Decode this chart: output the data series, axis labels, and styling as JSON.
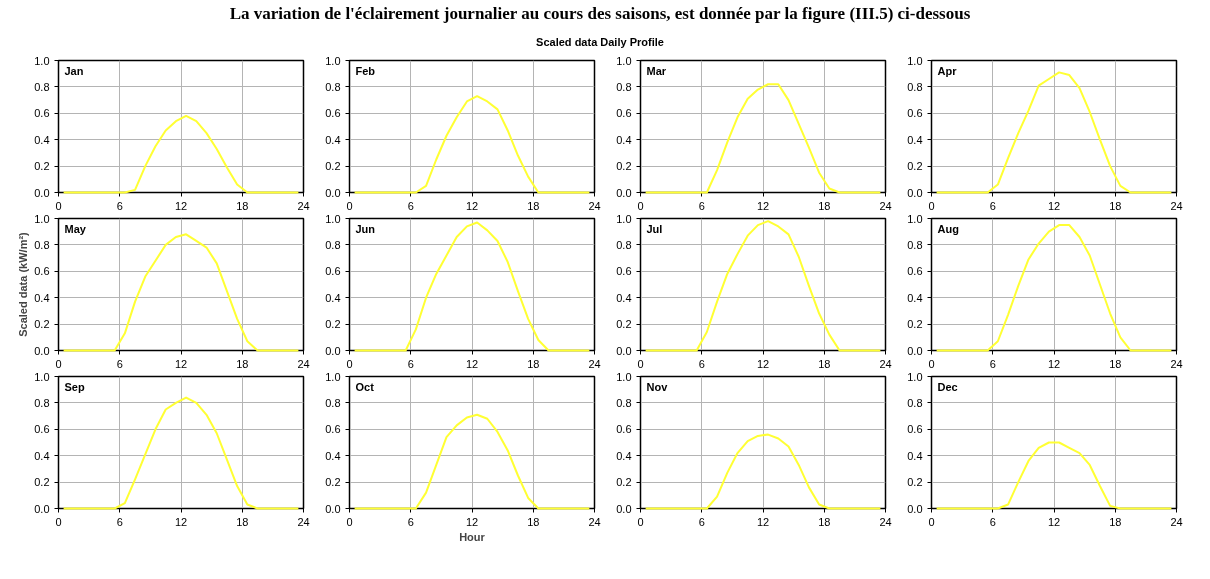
{
  "chart_data": [
    {
      "type": "line",
      "title": "Jan",
      "annotations": [
        "La variation de l'éclairement journalier au cours des saisons, est donnée par la figure (III.5) ci-dessous",
        "Scaled data Daily Profile"
      ],
      "x": [
        0.5,
        1.5,
        2.5,
        3.5,
        4.5,
        5.5,
        6.5,
        7.5,
        8.5,
        9.5,
        10.5,
        11.5,
        12.5,
        13.5,
        14.5,
        15.5,
        16.5,
        17.5,
        18.5,
        19.5,
        20.5,
        21.5,
        22.5,
        23.5
      ],
      "values": [
        0,
        0,
        0,
        0,
        0,
        0,
        0,
        0.02,
        0.2,
        0.35,
        0.47,
        0.54,
        0.58,
        0.54,
        0.45,
        0.33,
        0.19,
        0.06,
        0,
        0,
        0,
        0,
        0,
        0
      ],
      "color": "#ffff33",
      "xlim": [
        0,
        24
      ],
      "ylim": [
        0,
        1
      ],
      "xticks": [
        0,
        6,
        12,
        18,
        24
      ],
      "yticks": [
        {
          "value": 0,
          "label": "0.0"
        },
        {
          "value": 0.2,
          "label": "0.2"
        },
        {
          "value": 0.4,
          "label": "0.4"
        },
        {
          "value": 0.6,
          "label": "0.6"
        },
        {
          "value": 0.8,
          "label": "0.8"
        },
        {
          "value": 1,
          "label": "1.0"
        }
      ],
      "grid": true
    },
    {
      "type": "line",
      "title": "Feb",
      "x": [
        0.5,
        1.5,
        2.5,
        3.5,
        4.5,
        5.5,
        6.5,
        7.5,
        8.5,
        9.5,
        10.5,
        11.5,
        12.5,
        13.5,
        14.5,
        15.5,
        16.5,
        17.5,
        18.5,
        19.5,
        20.5,
        21.5,
        22.5,
        23.5
      ],
      "values": [
        0,
        0,
        0,
        0,
        0,
        0,
        0,
        0.05,
        0.25,
        0.43,
        0.57,
        0.69,
        0.73,
        0.69,
        0.63,
        0.47,
        0.28,
        0.12,
        0,
        0,
        0,
        0,
        0,
        0
      ],
      "color": "#ffff33",
      "xlim": [
        0,
        24
      ],
      "ylim": [
        0,
        1
      ],
      "xticks": [
        0,
        6,
        12,
        18,
        24
      ],
      "yticks": [
        {
          "value": 0,
          "label": "0.0"
        },
        {
          "value": 0.2,
          "label": "0.2"
        },
        {
          "value": 0.4,
          "label": "0.4"
        },
        {
          "value": 0.6,
          "label": "0.6"
        },
        {
          "value": 0.8,
          "label": "0.8"
        },
        {
          "value": 1,
          "label": "1.0"
        }
      ],
      "grid": true
    },
    {
      "type": "line",
      "title": "Mar",
      "x": [
        0.5,
        1.5,
        2.5,
        3.5,
        4.5,
        5.5,
        6.5,
        7.5,
        8.5,
        9.5,
        10.5,
        11.5,
        12.5,
        13.5,
        14.5,
        15.5,
        16.5,
        17.5,
        18.5,
        19.5,
        20.5,
        21.5,
        22.5,
        23.5
      ],
      "values": [
        0,
        0,
        0,
        0,
        0,
        0,
        0,
        0.17,
        0.38,
        0.57,
        0.71,
        0.78,
        0.82,
        0.82,
        0.7,
        0.52,
        0.34,
        0.15,
        0.03,
        0,
        0,
        0,
        0,
        0
      ],
      "color": "#ffff33",
      "xlim": [
        0,
        24
      ],
      "ylim": [
        0,
        1
      ],
      "xticks": [
        0,
        6,
        12,
        18,
        24
      ],
      "yticks": [
        {
          "value": 0,
          "label": "0.0"
        },
        {
          "value": 0.2,
          "label": "0.2"
        },
        {
          "value": 0.4,
          "label": "0.4"
        },
        {
          "value": 0.6,
          "label": "0.6"
        },
        {
          "value": 0.8,
          "label": "0.8"
        },
        {
          "value": 1,
          "label": "1.0"
        }
      ],
      "grid": true
    },
    {
      "type": "line",
      "title": "Apr",
      "x": [
        0.5,
        1.5,
        2.5,
        3.5,
        4.5,
        5.5,
        6.5,
        7.5,
        8.5,
        9.5,
        10.5,
        11.5,
        12.5,
        13.5,
        14.5,
        15.5,
        16.5,
        17.5,
        18.5,
        19.5,
        20.5,
        21.5,
        22.5,
        23.5
      ],
      "values": [
        0,
        0,
        0,
        0,
        0,
        0,
        0.06,
        0.26,
        0.45,
        0.62,
        0.81,
        0.86,
        0.91,
        0.89,
        0.79,
        0.61,
        0.4,
        0.2,
        0.05,
        0,
        0,
        0,
        0,
        0
      ],
      "color": "#ffff33",
      "xlim": [
        0,
        24
      ],
      "ylim": [
        0,
        1
      ],
      "xticks": [
        0,
        6,
        12,
        18,
        24
      ],
      "yticks": [
        {
          "value": 0,
          "label": "0.0"
        },
        {
          "value": 0.2,
          "label": "0.2"
        },
        {
          "value": 0.4,
          "label": "0.4"
        },
        {
          "value": 0.6,
          "label": "0.6"
        },
        {
          "value": 0.8,
          "label": "0.8"
        },
        {
          "value": 1,
          "label": "1.0"
        }
      ],
      "grid": true
    },
    {
      "type": "line",
      "title": "May",
      "ylabel": "Scaled data (kW/m²)",
      "x": [
        0.5,
        1.5,
        2.5,
        3.5,
        4.5,
        5.5,
        6.5,
        7.5,
        8.5,
        9.5,
        10.5,
        11.5,
        12.5,
        13.5,
        14.5,
        15.5,
        16.5,
        17.5,
        18.5,
        19.5,
        20.5,
        21.5,
        22.5,
        23.5
      ],
      "values": [
        0,
        0,
        0,
        0,
        0,
        0,
        0.13,
        0.37,
        0.56,
        0.68,
        0.8,
        0.86,
        0.88,
        0.83,
        0.78,
        0.66,
        0.45,
        0.24,
        0.07,
        0,
        0,
        0,
        0,
        0
      ],
      "color": "#ffff33",
      "xlim": [
        0,
        24
      ],
      "ylim": [
        0,
        1
      ],
      "xticks": [
        0,
        6,
        12,
        18,
        24
      ],
      "yticks": [
        {
          "value": 0,
          "label": "0.0"
        },
        {
          "value": 0.2,
          "label": "0.2"
        },
        {
          "value": 0.4,
          "label": "0.4"
        },
        {
          "value": 0.6,
          "label": "0.6"
        },
        {
          "value": 0.8,
          "label": "0.8"
        },
        {
          "value": 1,
          "label": "1.0"
        }
      ],
      "grid": true
    },
    {
      "type": "line",
      "title": "Jun",
      "x": [
        0.5,
        1.5,
        2.5,
        3.5,
        4.5,
        5.5,
        6.5,
        7.5,
        8.5,
        9.5,
        10.5,
        11.5,
        12.5,
        13.5,
        14.5,
        15.5,
        16.5,
        17.5,
        18.5,
        19.5,
        20.5,
        21.5,
        22.5,
        23.5
      ],
      "values": [
        0,
        0,
        0,
        0,
        0,
        0,
        0.16,
        0.4,
        0.58,
        0.72,
        0.86,
        0.94,
        0.97,
        0.91,
        0.83,
        0.67,
        0.45,
        0.24,
        0.08,
        0,
        0,
        0,
        0,
        0
      ],
      "color": "#ffff33",
      "xlim": [
        0,
        24
      ],
      "ylim": [
        0,
        1
      ],
      "xticks": [
        0,
        6,
        12,
        18,
        24
      ],
      "yticks": [
        {
          "value": 0,
          "label": "0.0"
        },
        {
          "value": 0.2,
          "label": "0.2"
        },
        {
          "value": 0.4,
          "label": "0.4"
        },
        {
          "value": 0.6,
          "label": "0.6"
        },
        {
          "value": 0.8,
          "label": "0.8"
        },
        {
          "value": 1,
          "label": "1.0"
        }
      ],
      "grid": true
    },
    {
      "type": "line",
      "title": "Jul",
      "x": [
        0.5,
        1.5,
        2.5,
        3.5,
        4.5,
        5.5,
        6.5,
        7.5,
        8.5,
        9.5,
        10.5,
        11.5,
        12.5,
        13.5,
        14.5,
        15.5,
        16.5,
        17.5,
        18.5,
        19.5,
        20.5,
        21.5,
        22.5,
        23.5
      ],
      "values": [
        0,
        0,
        0,
        0,
        0,
        0,
        0.14,
        0.37,
        0.58,
        0.73,
        0.87,
        0.95,
        0.98,
        0.94,
        0.88,
        0.71,
        0.49,
        0.28,
        0.12,
        0,
        0,
        0,
        0,
        0
      ],
      "color": "#ffff33",
      "xlim": [
        0,
        24
      ],
      "ylim": [
        0,
        1
      ],
      "xticks": [
        0,
        6,
        12,
        18,
        24
      ],
      "yticks": [
        {
          "value": 0,
          "label": "0.0"
        },
        {
          "value": 0.2,
          "label": "0.2"
        },
        {
          "value": 0.4,
          "label": "0.4"
        },
        {
          "value": 0.6,
          "label": "0.6"
        },
        {
          "value": 0.8,
          "label": "0.8"
        },
        {
          "value": 1,
          "label": "1.0"
        }
      ],
      "grid": true
    },
    {
      "type": "line",
      "title": "Aug",
      "x": [
        0.5,
        1.5,
        2.5,
        3.5,
        4.5,
        5.5,
        6.5,
        7.5,
        8.5,
        9.5,
        10.5,
        11.5,
        12.5,
        13.5,
        14.5,
        15.5,
        16.5,
        17.5,
        18.5,
        19.5,
        20.5,
        21.5,
        22.5,
        23.5
      ],
      "values": [
        0,
        0,
        0,
        0,
        0,
        0,
        0.07,
        0.27,
        0.49,
        0.69,
        0.81,
        0.9,
        0.95,
        0.95,
        0.86,
        0.72,
        0.5,
        0.28,
        0.1,
        0,
        0,
        0,
        0,
        0
      ],
      "color": "#ffff33",
      "xlim": [
        0,
        24
      ],
      "ylim": [
        0,
        1
      ],
      "xticks": [
        0,
        6,
        12,
        18,
        24
      ],
      "yticks": [
        {
          "value": 0,
          "label": "0.0"
        },
        {
          "value": 0.2,
          "label": "0.2"
        },
        {
          "value": 0.4,
          "label": "0.4"
        },
        {
          "value": 0.6,
          "label": "0.6"
        },
        {
          "value": 0.8,
          "label": "0.8"
        },
        {
          "value": 1,
          "label": "1.0"
        }
      ],
      "grid": true
    },
    {
      "type": "line",
      "title": "Sep",
      "x": [
        0.5,
        1.5,
        2.5,
        3.5,
        4.5,
        5.5,
        6.5,
        7.5,
        8.5,
        9.5,
        10.5,
        11.5,
        12.5,
        13.5,
        14.5,
        15.5,
        16.5,
        17.5,
        18.5,
        19.5,
        20.5,
        21.5,
        22.5,
        23.5
      ],
      "values": [
        0,
        0,
        0,
        0,
        0,
        0,
        0.04,
        0.22,
        0.41,
        0.6,
        0.75,
        0.8,
        0.84,
        0.8,
        0.71,
        0.57,
        0.37,
        0.17,
        0.03,
        0,
        0,
        0,
        0,
        0
      ],
      "color": "#ffff33",
      "xlim": [
        0,
        24
      ],
      "ylim": [
        0,
        1
      ],
      "xticks": [
        0,
        6,
        12,
        18,
        24
      ],
      "yticks": [
        {
          "value": 0,
          "label": "0.0"
        },
        {
          "value": 0.2,
          "label": "0.2"
        },
        {
          "value": 0.4,
          "label": "0.4"
        },
        {
          "value": 0.6,
          "label": "0.6"
        },
        {
          "value": 0.8,
          "label": "0.8"
        },
        {
          "value": 1,
          "label": "1.0"
        }
      ],
      "grid": true
    },
    {
      "type": "line",
      "title": "Oct",
      "xlabel": "Hour",
      "x": [
        0.5,
        1.5,
        2.5,
        3.5,
        4.5,
        5.5,
        6.5,
        7.5,
        8.5,
        9.5,
        10.5,
        11.5,
        12.5,
        13.5,
        14.5,
        15.5,
        16.5,
        17.5,
        18.5,
        19.5,
        20.5,
        21.5,
        22.5,
        23.5
      ],
      "values": [
        0,
        0,
        0,
        0,
        0,
        0,
        0,
        0.12,
        0.33,
        0.54,
        0.63,
        0.69,
        0.71,
        0.68,
        0.58,
        0.44,
        0.25,
        0.08,
        0,
        0,
        0,
        0,
        0,
        0
      ],
      "color": "#ffff33",
      "xlim": [
        0,
        24
      ],
      "ylim": [
        0,
        1
      ],
      "xticks": [
        0,
        6,
        12,
        18,
        24
      ],
      "yticks": [
        {
          "value": 0,
          "label": "0.0"
        },
        {
          "value": 0.2,
          "label": "0.2"
        },
        {
          "value": 0.4,
          "label": "0.4"
        },
        {
          "value": 0.6,
          "label": "0.6"
        },
        {
          "value": 0.8,
          "label": "0.8"
        },
        {
          "value": 1,
          "label": "1.0"
        }
      ],
      "grid": true
    },
    {
      "type": "line",
      "title": "Nov",
      "x": [
        0.5,
        1.5,
        2.5,
        3.5,
        4.5,
        5.5,
        6.5,
        7.5,
        8.5,
        9.5,
        10.5,
        11.5,
        12.5,
        13.5,
        14.5,
        15.5,
        16.5,
        17.5,
        18.5,
        19.5,
        20.5,
        21.5,
        22.5,
        23.5
      ],
      "values": [
        0,
        0,
        0,
        0,
        0,
        0,
        0,
        0.09,
        0.27,
        0.42,
        0.51,
        0.55,
        0.56,
        0.53,
        0.47,
        0.33,
        0.16,
        0.03,
        0,
        0,
        0,
        0,
        0,
        0
      ],
      "color": "#ffff33",
      "xlim": [
        0,
        24
      ],
      "ylim": [
        0,
        1
      ],
      "xticks": [
        0,
        6,
        12,
        18,
        24
      ],
      "yticks": [
        {
          "value": 0,
          "label": "0.0"
        },
        {
          "value": 0.2,
          "label": "0.2"
        },
        {
          "value": 0.4,
          "label": "0.4"
        },
        {
          "value": 0.6,
          "label": "0.6"
        },
        {
          "value": 0.8,
          "label": "0.8"
        },
        {
          "value": 1,
          "label": "1.0"
        }
      ],
      "grid": true
    },
    {
      "type": "line",
      "title": "Dec",
      "x": [
        0.5,
        1.5,
        2.5,
        3.5,
        4.5,
        5.5,
        6.5,
        7.5,
        8.5,
        9.5,
        10.5,
        11.5,
        12.5,
        13.5,
        14.5,
        15.5,
        16.5,
        17.5,
        18.5,
        19.5,
        20.5,
        21.5,
        22.5,
        23.5
      ],
      "values": [
        0,
        0,
        0,
        0,
        0,
        0,
        0,
        0.03,
        0.2,
        0.36,
        0.46,
        0.5,
        0.5,
        0.46,
        0.42,
        0.33,
        0.17,
        0.02,
        0,
        0,
        0,
        0,
        0,
        0
      ],
      "color": "#ffff33",
      "xlim": [
        0,
        24
      ],
      "ylim": [
        0,
        1
      ],
      "xticks": [
        0,
        6,
        12,
        18,
        24
      ],
      "yticks": [
        {
          "value": 0,
          "label": "0.0"
        },
        {
          "value": 0.2,
          "label": "0.2"
        },
        {
          "value": 0.4,
          "label": "0.4"
        },
        {
          "value": 0.6,
          "label": "0.6"
        },
        {
          "value": 0.8,
          "label": "0.8"
        },
        {
          "value": 1,
          "label": "1.0"
        }
      ],
      "grid": true
    }
  ]
}
